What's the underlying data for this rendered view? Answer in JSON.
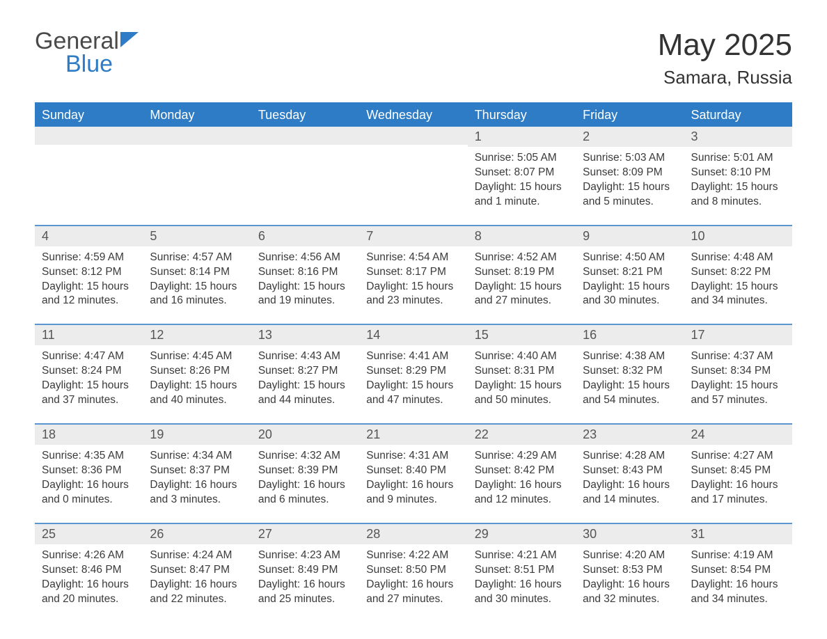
{
  "logo": {
    "general": "General",
    "blue": "Blue"
  },
  "title": "May 2025",
  "location": "Samara, Russia",
  "colors": {
    "header_bg": "#2d7cc5",
    "header_text": "#ffffff",
    "week_border": "#5b95cf",
    "daynum_bg": "#ececec",
    "text": "#3a3a3a",
    "background": "#ffffff"
  },
  "weekdays": [
    "Sunday",
    "Monday",
    "Tuesday",
    "Wednesday",
    "Thursday",
    "Friday",
    "Saturday"
  ],
  "weeks": [
    [
      {
        "day": "",
        "sunrise": "",
        "sunset": "",
        "daylight": ""
      },
      {
        "day": "",
        "sunrise": "",
        "sunset": "",
        "daylight": ""
      },
      {
        "day": "",
        "sunrise": "",
        "sunset": "",
        "daylight": ""
      },
      {
        "day": "",
        "sunrise": "",
        "sunset": "",
        "daylight": ""
      },
      {
        "day": "1",
        "sunrise": "Sunrise: 5:05 AM",
        "sunset": "Sunset: 8:07 PM",
        "daylight": "Daylight: 15 hours and 1 minute."
      },
      {
        "day": "2",
        "sunrise": "Sunrise: 5:03 AM",
        "sunset": "Sunset: 8:09 PM",
        "daylight": "Daylight: 15 hours and 5 minutes."
      },
      {
        "day": "3",
        "sunrise": "Sunrise: 5:01 AM",
        "sunset": "Sunset: 8:10 PM",
        "daylight": "Daylight: 15 hours and 8 minutes."
      }
    ],
    [
      {
        "day": "4",
        "sunrise": "Sunrise: 4:59 AM",
        "sunset": "Sunset: 8:12 PM",
        "daylight": "Daylight: 15 hours and 12 minutes."
      },
      {
        "day": "5",
        "sunrise": "Sunrise: 4:57 AM",
        "sunset": "Sunset: 8:14 PM",
        "daylight": "Daylight: 15 hours and 16 minutes."
      },
      {
        "day": "6",
        "sunrise": "Sunrise: 4:56 AM",
        "sunset": "Sunset: 8:16 PM",
        "daylight": "Daylight: 15 hours and 19 minutes."
      },
      {
        "day": "7",
        "sunrise": "Sunrise: 4:54 AM",
        "sunset": "Sunset: 8:17 PM",
        "daylight": "Daylight: 15 hours and 23 minutes."
      },
      {
        "day": "8",
        "sunrise": "Sunrise: 4:52 AM",
        "sunset": "Sunset: 8:19 PM",
        "daylight": "Daylight: 15 hours and 27 minutes."
      },
      {
        "day": "9",
        "sunrise": "Sunrise: 4:50 AM",
        "sunset": "Sunset: 8:21 PM",
        "daylight": "Daylight: 15 hours and 30 minutes."
      },
      {
        "day": "10",
        "sunrise": "Sunrise: 4:48 AM",
        "sunset": "Sunset: 8:22 PM",
        "daylight": "Daylight: 15 hours and 34 minutes."
      }
    ],
    [
      {
        "day": "11",
        "sunrise": "Sunrise: 4:47 AM",
        "sunset": "Sunset: 8:24 PM",
        "daylight": "Daylight: 15 hours and 37 minutes."
      },
      {
        "day": "12",
        "sunrise": "Sunrise: 4:45 AM",
        "sunset": "Sunset: 8:26 PM",
        "daylight": "Daylight: 15 hours and 40 minutes."
      },
      {
        "day": "13",
        "sunrise": "Sunrise: 4:43 AM",
        "sunset": "Sunset: 8:27 PM",
        "daylight": "Daylight: 15 hours and 44 minutes."
      },
      {
        "day": "14",
        "sunrise": "Sunrise: 4:41 AM",
        "sunset": "Sunset: 8:29 PM",
        "daylight": "Daylight: 15 hours and 47 minutes."
      },
      {
        "day": "15",
        "sunrise": "Sunrise: 4:40 AM",
        "sunset": "Sunset: 8:31 PM",
        "daylight": "Daylight: 15 hours and 50 minutes."
      },
      {
        "day": "16",
        "sunrise": "Sunrise: 4:38 AM",
        "sunset": "Sunset: 8:32 PM",
        "daylight": "Daylight: 15 hours and 54 minutes."
      },
      {
        "day": "17",
        "sunrise": "Sunrise: 4:37 AM",
        "sunset": "Sunset: 8:34 PM",
        "daylight": "Daylight: 15 hours and 57 minutes."
      }
    ],
    [
      {
        "day": "18",
        "sunrise": "Sunrise: 4:35 AM",
        "sunset": "Sunset: 8:36 PM",
        "daylight": "Daylight: 16 hours and 0 minutes."
      },
      {
        "day": "19",
        "sunrise": "Sunrise: 4:34 AM",
        "sunset": "Sunset: 8:37 PM",
        "daylight": "Daylight: 16 hours and 3 minutes."
      },
      {
        "day": "20",
        "sunrise": "Sunrise: 4:32 AM",
        "sunset": "Sunset: 8:39 PM",
        "daylight": "Daylight: 16 hours and 6 minutes."
      },
      {
        "day": "21",
        "sunrise": "Sunrise: 4:31 AM",
        "sunset": "Sunset: 8:40 PM",
        "daylight": "Daylight: 16 hours and 9 minutes."
      },
      {
        "day": "22",
        "sunrise": "Sunrise: 4:29 AM",
        "sunset": "Sunset: 8:42 PM",
        "daylight": "Daylight: 16 hours and 12 minutes."
      },
      {
        "day": "23",
        "sunrise": "Sunrise: 4:28 AM",
        "sunset": "Sunset: 8:43 PM",
        "daylight": "Daylight: 16 hours and 14 minutes."
      },
      {
        "day": "24",
        "sunrise": "Sunrise: 4:27 AM",
        "sunset": "Sunset: 8:45 PM",
        "daylight": "Daylight: 16 hours and 17 minutes."
      }
    ],
    [
      {
        "day": "25",
        "sunrise": "Sunrise: 4:26 AM",
        "sunset": "Sunset: 8:46 PM",
        "daylight": "Daylight: 16 hours and 20 minutes."
      },
      {
        "day": "26",
        "sunrise": "Sunrise: 4:24 AM",
        "sunset": "Sunset: 8:47 PM",
        "daylight": "Daylight: 16 hours and 22 minutes."
      },
      {
        "day": "27",
        "sunrise": "Sunrise: 4:23 AM",
        "sunset": "Sunset: 8:49 PM",
        "daylight": "Daylight: 16 hours and 25 minutes."
      },
      {
        "day": "28",
        "sunrise": "Sunrise: 4:22 AM",
        "sunset": "Sunset: 8:50 PM",
        "daylight": "Daylight: 16 hours and 27 minutes."
      },
      {
        "day": "29",
        "sunrise": "Sunrise: 4:21 AM",
        "sunset": "Sunset: 8:51 PM",
        "daylight": "Daylight: 16 hours and 30 minutes."
      },
      {
        "day": "30",
        "sunrise": "Sunrise: 4:20 AM",
        "sunset": "Sunset: 8:53 PM",
        "daylight": "Daylight: 16 hours and 32 minutes."
      },
      {
        "day": "31",
        "sunrise": "Sunrise: 4:19 AM",
        "sunset": "Sunset: 8:54 PM",
        "daylight": "Daylight: 16 hours and 34 minutes."
      }
    ]
  ]
}
